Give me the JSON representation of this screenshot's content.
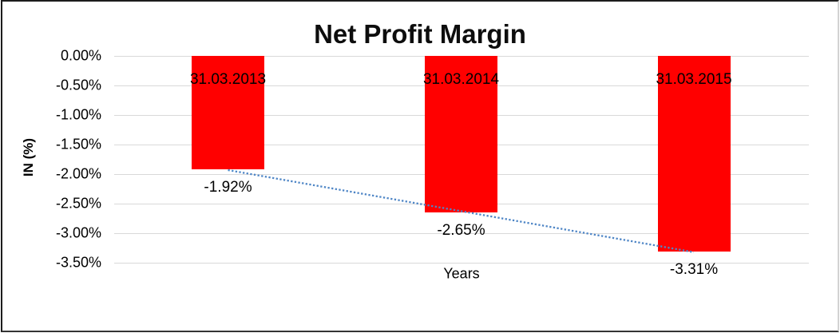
{
  "chart_data": {
    "type": "bar",
    "title": "Net Profit Margin",
    "xlabel": "Years",
    "ylabel": "IN (%)",
    "categories": [
      "31.03.2013",
      "31.03.2014",
      "31.03.2015"
    ],
    "values": [
      -1.92,
      -2.65,
      -3.31
    ],
    "value_labels": [
      "-1.92%",
      "-2.65%",
      "-3.31%"
    ],
    "yticks": [
      "0.00%",
      "-0.50%",
      "-1.00%",
      "-1.50%",
      "-2.00%",
      "-2.50%",
      "-3.00%",
      "-3.50%"
    ],
    "ylim": [
      -3.5,
      0
    ],
    "grid": true,
    "legend": "none",
    "bar_color": "#ff0000",
    "gridline_color": "#d9d9d9",
    "text_color": "#000000",
    "trendline": {
      "type": "linear",
      "style": "dotted",
      "color": "#4f86c6"
    }
  }
}
